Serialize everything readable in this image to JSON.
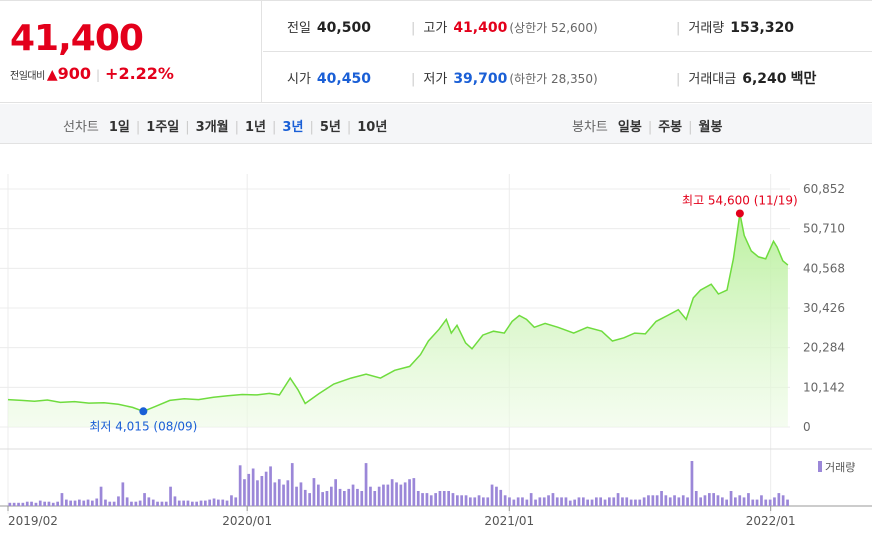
{
  "price": {
    "current": "41,400",
    "change_label": "전일대비",
    "change_arrow": "▲",
    "change_amount": "900",
    "change_pct": "+2.22%"
  },
  "stats": {
    "prev_close_label": "전일",
    "prev_close": "40,500",
    "high_label": "고가",
    "high": "41,400",
    "upper_limit": "(상한가 52,600)",
    "volume_label": "거래량",
    "volume": "153,320",
    "open_label": "시가",
    "open": "40,450",
    "low_label": "저가",
    "low": "39,700",
    "lower_limit": "(하한가 28,350)",
    "amount_label": "거래대금",
    "amount": "6,240",
    "amount_unit": "백만"
  },
  "periods": {
    "line_label": "선차트",
    "line_items": [
      "1일",
      "1주일",
      "3개월",
      "1년",
      "3년",
      "5년",
      "10년"
    ],
    "active": "3년",
    "candle_label": "봉차트",
    "candle_items": [
      "일봉",
      "주봉",
      "월봉"
    ]
  },
  "colors": {
    "up": "#e3001b",
    "down": "#1a5fd6",
    "area_line": "#6fdc3e",
    "area_fill": "#c9f5b5",
    "volume": "#9b87d8"
  },
  "chart_data": {
    "type": "area",
    "yticks": [
      "60,852",
      "50,710",
      "40,568",
      "30,426",
      "20,284",
      "10,142",
      "0"
    ],
    "ylim": [
      0,
      60852
    ],
    "xticks": [
      {
        "label": "2019/02",
        "date": "2019-02"
      },
      {
        "label": "2020/01",
        "date": "2020-01"
      },
      {
        "label": "2021/01",
        "date": "2021-01"
      },
      {
        "label": "2022/01",
        "date": "2022-01"
      }
    ],
    "high_annotation": "최고 54,600 (11/19)",
    "low_annotation": "최저 4,015 (08/09)",
    "volume_legend": "거래량",
    "price_series": [
      [
        "2019-02-01",
        7000
      ],
      [
        "2019-02-20",
        6800
      ],
      [
        "2019-03-10",
        6600
      ],
      [
        "2019-03-28",
        6900
      ],
      [
        "2019-04-15",
        6300
      ],
      [
        "2019-05-05",
        6500
      ],
      [
        "2019-05-25",
        6100
      ],
      [
        "2019-06-15",
        6200
      ],
      [
        "2019-07-05",
        5800
      ],
      [
        "2019-07-25",
        5000
      ],
      [
        "2019-08-09",
        4015
      ],
      [
        "2019-08-25",
        5200
      ],
      [
        "2019-09-15",
        6800
      ],
      [
        "2019-10-05",
        7200
      ],
      [
        "2019-10-25",
        7000
      ],
      [
        "2019-11-15",
        7600
      ],
      [
        "2019-12-05",
        8000
      ],
      [
        "2019-12-25",
        8300
      ],
      [
        "2020-01-15",
        8200
      ],
      [
        "2020-02-01",
        8600
      ],
      [
        "2020-02-15",
        8200
      ],
      [
        "2020-03-01",
        12500
      ],
      [
        "2020-03-12",
        9500
      ],
      [
        "2020-03-22",
        6000
      ],
      [
        "2020-04-10",
        8500
      ],
      [
        "2020-05-01",
        11000
      ],
      [
        "2020-05-25",
        12500
      ],
      [
        "2020-06-15",
        13500
      ],
      [
        "2020-07-05",
        12500
      ],
      [
        "2020-07-25",
        14500
      ],
      [
        "2020-08-15",
        15500
      ],
      [
        "2020-08-30",
        18500
      ],
      [
        "2020-09-10",
        22000
      ],
      [
        "2020-09-25",
        25000
      ],
      [
        "2020-10-05",
        27500
      ],
      [
        "2020-10-12",
        24000
      ],
      [
        "2020-10-20",
        26000
      ],
      [
        "2020-11-01",
        21500
      ],
      [
        "2020-11-10",
        20000
      ],
      [
        "2020-11-25",
        23500
      ],
      [
        "2020-12-10",
        24500
      ],
      [
        "2020-12-25",
        24000
      ],
      [
        "2021-01-05",
        27000
      ],
      [
        "2021-01-15",
        28500
      ],
      [
        "2021-01-25",
        27500
      ],
      [
        "2021-02-05",
        25500
      ],
      [
        "2021-02-20",
        26500
      ],
      [
        "2021-03-10",
        25500
      ],
      [
        "2021-04-01",
        24000
      ],
      [
        "2021-04-20",
        25500
      ],
      [
        "2021-05-10",
        24500
      ],
      [
        "2021-05-25",
        22000
      ],
      [
        "2021-06-10",
        22800
      ],
      [
        "2021-06-25",
        24000
      ],
      [
        "2021-07-10",
        23800
      ],
      [
        "2021-07-25",
        27000
      ],
      [
        "2021-08-10",
        28500
      ],
      [
        "2021-08-25",
        30000
      ],
      [
        "2021-09-05",
        27500
      ],
      [
        "2021-09-15",
        33000
      ],
      [
        "2021-09-25",
        35000
      ],
      [
        "2021-10-10",
        36500
      ],
      [
        "2021-10-20",
        34000
      ],
      [
        "2021-11-01",
        35000
      ],
      [
        "2021-11-10",
        43000
      ],
      [
        "2021-11-19",
        54600
      ],
      [
        "2021-11-25",
        49000
      ],
      [
        "2021-12-05",
        45000
      ],
      [
        "2021-12-15",
        43500
      ],
      [
        "2021-12-25",
        43000
      ],
      [
        "2022-01-05",
        47500
      ],
      [
        "2022-01-10",
        46000
      ],
      [
        "2022-01-18",
        42500
      ],
      [
        "2022-01-25",
        41400
      ]
    ],
    "volume_series": [
      3,
      3,
      3,
      3,
      4,
      4,
      3,
      5,
      4,
      4,
      3,
      4,
      12,
      6,
      5,
      5,
      6,
      5,
      6,
      5,
      7,
      18,
      6,
      4,
      4,
      9,
      22,
      8,
      4,
      4,
      5,
      12,
      8,
      6,
      4,
      4,
      4,
      18,
      9,
      5,
      5,
      5,
      4,
      4,
      5,
      5,
      6,
      7,
      6,
      6,
      5,
      10,
      8,
      38,
      25,
      30,
      35,
      24,
      28,
      32,
      37,
      22,
      25,
      20,
      24,
      40,
      18,
      22,
      15,
      12,
      26,
      20,
      13,
      14,
      18,
      25,
      16,
      14,
      16,
      20,
      16,
      14,
      40,
      18,
      14,
      18,
      20,
      20,
      25,
      22,
      20,
      22,
      25,
      26,
      14,
      12,
      12,
      10,
      12,
      14,
      14,
      14,
      12,
      10,
      10,
      10,
      8,
      8,
      10,
      8,
      8,
      20,
      18,
      15,
      10,
      8,
      6,
      8,
      8,
      6,
      12,
      6,
      8,
      8,
      10,
      12,
      8,
      8,
      8,
      5,
      6,
      8,
      8,
      6,
      6,
      8,
      8,
      6,
      8,
      8,
      12,
      8,
      8,
      6,
      6,
      6,
      8,
      10,
      10,
      10,
      14,
      10,
      8,
      10,
      8,
      10,
      8,
      42,
      14,
      8,
      10,
      12,
      12,
      10,
      8,
      6,
      14,
      8,
      10,
      8,
      12,
      6,
      6,
      10,
      6,
      6,
      8,
      12,
      10,
      6
    ]
  }
}
